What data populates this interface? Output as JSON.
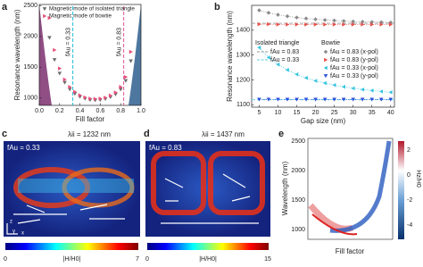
{
  "chart_data": [
    {
      "type": "scatter",
      "label": "a",
      "xlabel": "Fill factor",
      "ylabel": "Resonance wavelength (nm)",
      "xlim": [
        0,
        1
      ],
      "xticks": [
        {
          "value": 0,
          "label": "0.0"
        },
        {
          "value": 0.2,
          "label": "0.2"
        },
        {
          "value": 0.4,
          "label": "0.4"
        },
        {
          "value": 0.6,
          "label": "0.6"
        },
        {
          "value": 0.8,
          "label": "0.8"
        },
        {
          "value": 1,
          "label": "1.0"
        }
      ],
      "ylim": [
        880,
        2520
      ],
      "yticks": [
        1000,
        1500,
        2000,
        2500
      ],
      "legend": "upper-left",
      "x": [
        0.1,
        0.15,
        0.2,
        0.25,
        0.3,
        0.35,
        0.4,
        0.45,
        0.5,
        0.55,
        0.6,
        0.65,
        0.7,
        0.75,
        0.8,
        0.85,
        0.9
      ],
      "series": [
        {
          "name": "Magnetic mode of isolated triangle",
          "color": "#6b6b6b",
          "marker": "triangle-down",
          "values": [
            1980,
            1620,
            1400,
            1250,
            1140,
            1070,
            1020,
            990,
            970,
            965,
            970,
            985,
            1015,
            1060,
            1140,
            1280,
            1600
          ]
        },
        {
          "name": "Magnetic mode of bowtie",
          "color": "#e8507a",
          "marker": "triangle-right",
          "values": [
            2300,
            1780,
            1480,
            1300,
            1180,
            1100,
            1045,
            1010,
            990,
            985,
            990,
            1005,
            1040,
            1090,
            1180,
            1340,
            1750
          ]
        }
      ],
      "annotations": [
        {
          "text": "fAu = 0.33",
          "x": 0.33,
          "color": "#22bcd6"
        },
        {
          "text": "fAu = 0.83",
          "x": 0.83,
          "color": "#e0559a"
        }
      ]
    },
    {
      "type": "scatter",
      "label": "b",
      "xlabel": "Gap size (nm)",
      "ylabel": "Resonance wavelength (nm)",
      "connect": "dotted",
      "xlim": [
        3,
        41
      ],
      "xticks": [
        5,
        10,
        15,
        20,
        25,
        30,
        35,
        40
      ],
      "ylim": [
        1090,
        1500
      ],
      "yticks": [
        1100,
        1200,
        1300,
        1400
      ],
      "x": [
        5,
        7.5,
        10,
        12.5,
        15,
        17.5,
        20,
        22.5,
        25,
        27.5,
        30,
        32.5,
        35,
        37.5,
        40
      ],
      "legend_groups": [
        "Isolated triangle",
        "Bowtie"
      ],
      "reference_lines": [
        {
          "name": "fAu = 0.83",
          "value": 1428,
          "color": "#9a9a9a"
        },
        {
          "name": "fAu = 0.33",
          "value": 1120,
          "color": "#5fcde6"
        }
      ],
      "series": [
        {
          "name": "fAu = 0.83 (x-pol)",
          "color": "#8a8a8a",
          "marker": "diamond",
          "values": [
            1480,
            1470,
            1462,
            1456,
            1451,
            1447,
            1444,
            1441,
            1439,
            1437,
            1435,
            1434,
            1433,
            1432,
            1431
          ]
        },
        {
          "name": "fAu = 0.83 (y-pol)",
          "color": "#e8504a",
          "marker": "triangle-right",
          "values": [
            1424,
            1424,
            1423,
            1423,
            1423,
            1423,
            1423,
            1423,
            1423,
            1423,
            1423,
            1423,
            1423,
            1423,
            1423
          ]
        },
        {
          "name": "fAu = 0.33 (x-pol)",
          "color": "#36c5e0",
          "marker": "triangle-left",
          "values": [
            1330,
            1290,
            1262,
            1240,
            1222,
            1208,
            1196,
            1187,
            1179,
            1172,
            1166,
            1161,
            1157,
            1153,
            1150
          ]
        },
        {
          "name": "fAu = 0.33 (y-pol)",
          "color": "#2b4fd8",
          "marker": "triangle-down",
          "values": [
            1121,
            1121,
            1121,
            1121,
            1121,
            1121,
            1121,
            1121,
            1121,
            1121,
            1121,
            1121,
            1121,
            1121,
            1121
          ]
        }
      ]
    }
  ],
  "panels": {
    "c": {
      "label": "c",
      "fill_label": "fAu = 0.33",
      "wavelength_label": "λii = 1232 nm",
      "axes": [
        "z",
        "y",
        "x"
      ],
      "colorbar": {
        "label": "|H/H0|",
        "min": 0,
        "max": 7
      }
    },
    "d": {
      "label": "d",
      "fill_label": "fAu = 0.83",
      "wavelength_label": "λii = 1437 nm",
      "colorbar": {
        "label": "|H/H0|",
        "min": 0,
        "max": 15
      }
    },
    "e": {
      "label": "e",
      "xlabel": "Fill factor",
      "ylabel": "Wavelength (nm)",
      "yticks": [
        2500,
        2000,
        1500,
        1000
      ],
      "colorbar": {
        "label": "Hz/H0",
        "ticks": [
          2,
          0,
          -2,
          -4
        ]
      }
    }
  }
}
